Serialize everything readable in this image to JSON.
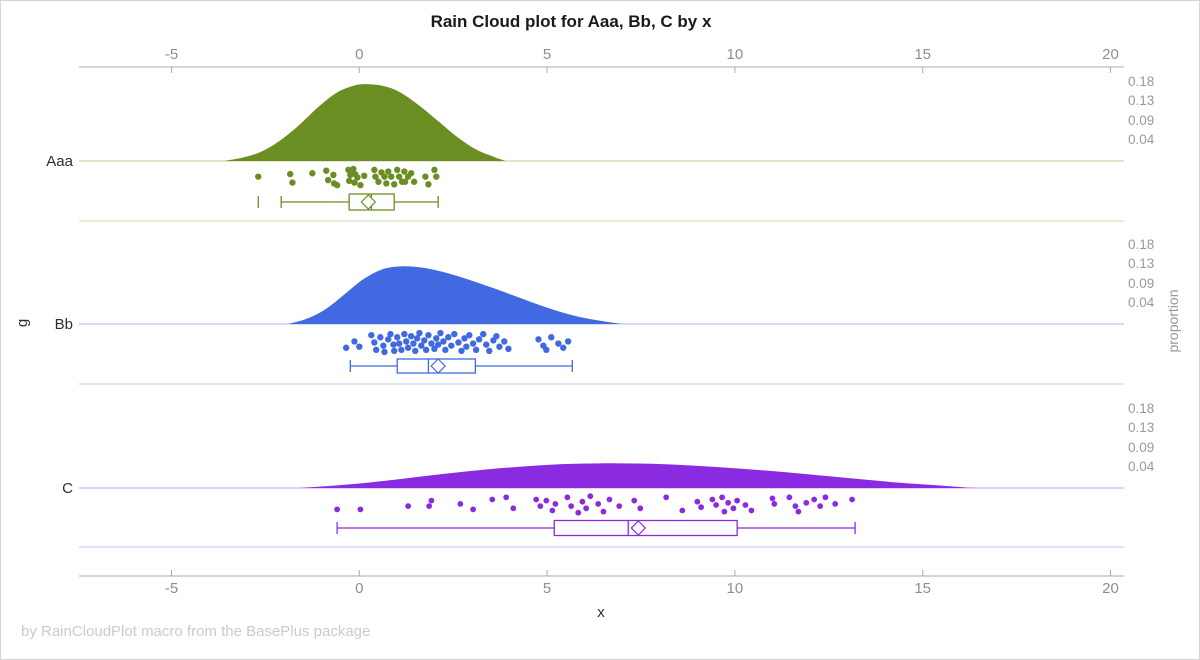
{
  "chart_data": {
    "type": "raincloud",
    "title": "Rain Cloud plot for Aaa, Bb, C by x",
    "footnote": "by RainCloudPlot macro from the BasePlus package",
    "xlabel": "x",
    "ylabel_left": "g",
    "ylabel_right": "proportion",
    "xlim": [
      -7.5,
      20.4
    ],
    "x_ticks": [
      -5,
      0,
      5,
      10,
      15,
      20
    ],
    "proportion_ticks": [
      "0.18",
      "0.13",
      "0.09",
      "0.04"
    ],
    "axis_color": "#ababab",
    "tick_label_color": "#8e8e8e",
    "groups": [
      {
        "label": "Aaa",
        "color": "#6B8E23",
        "density": {
          "x": [
            -3.6,
            -3.1,
            -2.6,
            -2.1,
            -1.6,
            -1.1,
            -0.6,
            -0.1,
            0.3,
            0.7,
            1.1,
            1.6,
            2.1,
            2.6,
            3.1,
            3.6,
            3.9
          ],
          "proportion": [
            0,
            0.008,
            0.022,
            0.048,
            0.083,
            0.124,
            0.158,
            0.175,
            0.177,
            0.172,
            0.158,
            0.128,
            0.092,
            0.056,
            0.027,
            0.009,
            0
          ]
        },
        "box": {
          "outlier_tick": -2.69,
          "whisker_low": -2.08,
          "q1": -0.27,
          "median": 0.32,
          "mean": 0.24,
          "q3": 0.93,
          "whisker_high": 2.1
        },
        "points": [
          [
            -2.69,
            0.45
          ],
          [
            -1.84,
            0.3
          ],
          [
            -1.78,
            0.8
          ],
          [
            -1.25,
            0.25
          ],
          [
            -0.88,
            0.1
          ],
          [
            -0.83,
            0.65
          ],
          [
            -0.69,
            0.35
          ],
          [
            -0.67,
            0.85
          ],
          [
            -0.59,
            0.95
          ],
          [
            -0.29,
            0.05
          ],
          [
            -0.27,
            0.7
          ],
          [
            -0.24,
            0.35
          ],
          [
            -0.19,
            0.2
          ],
          [
            -0.16,
            0.0
          ],
          [
            -0.13,
            0.8
          ],
          [
            -0.11,
            0.3
          ],
          [
            -0.05,
            0.5
          ],
          [
            0.03,
            0.95
          ],
          [
            0.13,
            0.4
          ],
          [
            0.4,
            0.05
          ],
          [
            0.43,
            0.45
          ],
          [
            0.51,
            0.75
          ],
          [
            0.59,
            0.2
          ],
          [
            0.67,
            0.45
          ],
          [
            0.72,
            0.85
          ],
          [
            0.77,
            0.15
          ],
          [
            0.85,
            0.45
          ],
          [
            0.93,
            0.9
          ],
          [
            1.01,
            0.05
          ],
          [
            1.06,
            0.45
          ],
          [
            1.14,
            0.75
          ],
          [
            1.2,
            0.15
          ],
          [
            1.22,
            0.75
          ],
          [
            1.3,
            0.45
          ],
          [
            1.38,
            0.25
          ],
          [
            1.46,
            0.75
          ],
          [
            1.76,
            0.45
          ],
          [
            1.84,
            0.9
          ],
          [
            2.0,
            0.05
          ],
          [
            2.05,
            0.45
          ]
        ]
      },
      {
        "label": "Bb",
        "color": "#4169E1",
        "density": {
          "x": [
            -1.9,
            -1.4,
            -0.9,
            -0.4,
            0.1,
            0.6,
            1.1,
            1.6,
            2.1,
            2.6,
            3.1,
            3.6,
            4.1,
            4.6,
            5.1,
            5.6,
            6.1,
            6.6,
            7.0
          ],
          "proportion": [
            0,
            0.012,
            0.034,
            0.068,
            0.103,
            0.126,
            0.133,
            0.131,
            0.123,
            0.111,
            0.097,
            0.082,
            0.066,
            0.05,
            0.035,
            0.022,
            0.012,
            0.005,
            0
          ]
        },
        "box": {
          "whisker_low": -0.24,
          "q1": 1.01,
          "median": 1.84,
          "mean": 2.1,
          "q3": 3.09,
          "whisker_high": 5.67
        },
        "points": [
          [
            -0.35,
            0.75
          ],
          [
            -0.13,
            0.45
          ],
          [
            0.0,
            0.7
          ],
          [
            0.32,
            0.15
          ],
          [
            0.4,
            0.5
          ],
          [
            0.45,
            0.85
          ],
          [
            0.56,
            0.25
          ],
          [
            0.64,
            0.65
          ],
          [
            0.67,
            0.95
          ],
          [
            0.77,
            0.35
          ],
          [
            0.83,
            0.1
          ],
          [
            0.91,
            0.6
          ],
          [
            0.93,
            0.9
          ],
          [
            1.01,
            0.25
          ],
          [
            1.06,
            0.55
          ],
          [
            1.12,
            0.85
          ],
          [
            1.2,
            0.1
          ],
          [
            1.25,
            0.45
          ],
          [
            1.3,
            0.75
          ],
          [
            1.38,
            0.2
          ],
          [
            1.44,
            0.55
          ],
          [
            1.49,
            0.9
          ],
          [
            1.54,
            0.3
          ],
          [
            1.6,
            0.05
          ],
          [
            1.65,
            0.65
          ],
          [
            1.73,
            0.4
          ],
          [
            1.78,
            0.85
          ],
          [
            1.84,
            0.15
          ],
          [
            1.92,
            0.55
          ],
          [
            2.0,
            0.8
          ],
          [
            2.05,
            0.3
          ],
          [
            2.1,
            0.6
          ],
          [
            2.16,
            0.05
          ],
          [
            2.24,
            0.45
          ],
          [
            2.29,
            0.85
          ],
          [
            2.37,
            0.25
          ],
          [
            2.45,
            0.65
          ],
          [
            2.53,
            0.1
          ],
          [
            2.64,
            0.5
          ],
          [
            2.72,
            0.9
          ],
          [
            2.8,
            0.3
          ],
          [
            2.85,
            0.7
          ],
          [
            2.93,
            0.15
          ],
          [
            3.03,
            0.55
          ],
          [
            3.11,
            0.85
          ],
          [
            3.19,
            0.35
          ],
          [
            3.3,
            0.1
          ],
          [
            3.38,
            0.6
          ],
          [
            3.46,
            0.9
          ],
          [
            3.57,
            0.4
          ],
          [
            3.65,
            0.2
          ],
          [
            3.73,
            0.7
          ],
          [
            3.86,
            0.45
          ],
          [
            3.97,
            0.8
          ],
          [
            4.77,
            0.35
          ],
          [
            4.9,
            0.65
          ],
          [
            4.98,
            0.85
          ],
          [
            5.11,
            0.25
          ],
          [
            5.3,
            0.55
          ],
          [
            5.43,
            0.75
          ],
          [
            5.56,
            0.45
          ]
        ]
      },
      {
        "label": "C",
        "color": "#8A2BE2",
        "density": {
          "x": [
            -1.6,
            -0.6,
            0.4,
            1.4,
            2.4,
            3.4,
            4.4,
            5.4,
            6.4,
            7.4,
            8.4,
            9.4,
            10.4,
            11.4,
            12.4,
            13.4,
            14.4,
            15.4,
            16.2,
            16.6
          ],
          "proportion": [
            0,
            0.006,
            0.014,
            0.024,
            0.034,
            0.043,
            0.05,
            0.055,
            0.057,
            0.0565,
            0.054,
            0.049,
            0.043,
            0.036,
            0.028,
            0.02,
            0.012,
            0.006,
            0.001,
            0
          ]
        },
        "box": {
          "whisker_low": -0.59,
          "q1": 5.19,
          "median": 7.16,
          "mean": 7.43,
          "q3": 10.06,
          "whisker_high": 13.2
        },
        "points": [
          [
            -0.59,
            0.7
          ],
          [
            0.03,
            0.7
          ],
          [
            1.3,
            0.55
          ],
          [
            1.86,
            0.55
          ],
          [
            1.92,
            0.3
          ],
          [
            2.69,
            0.45
          ],
          [
            3.03,
            0.7
          ],
          [
            3.54,
            0.25
          ],
          [
            3.91,
            0.15
          ],
          [
            4.1,
            0.65
          ],
          [
            4.71,
            0.25
          ],
          [
            4.82,
            0.55
          ],
          [
            4.98,
            0.3
          ],
          [
            5.14,
            0.75
          ],
          [
            5.22,
            0.45
          ],
          [
            5.54,
            0.15
          ],
          [
            5.64,
            0.55
          ],
          [
            5.83,
            0.85
          ],
          [
            5.94,
            0.35
          ],
          [
            6.04,
            0.65
          ],
          [
            6.15,
            0.1
          ],
          [
            6.36,
            0.45
          ],
          [
            6.5,
            0.8
          ],
          [
            6.66,
            0.25
          ],
          [
            6.92,
            0.55
          ],
          [
            7.32,
            0.3
          ],
          [
            7.48,
            0.65
          ],
          [
            8.17,
            0.15
          ],
          [
            8.6,
            0.75
          ],
          [
            9.0,
            0.35
          ],
          [
            9.1,
            0.6
          ],
          [
            9.4,
            0.25
          ],
          [
            9.5,
            0.5
          ],
          [
            9.66,
            0.15
          ],
          [
            9.72,
            0.8
          ],
          [
            9.82,
            0.4
          ],
          [
            9.96,
            0.65
          ],
          [
            10.06,
            0.3
          ],
          [
            10.28,
            0.5
          ],
          [
            10.44,
            0.75
          ],
          [
            11.0,
            0.2
          ],
          [
            11.05,
            0.45
          ],
          [
            11.45,
            0.15
          ],
          [
            11.61,
            0.55
          ],
          [
            11.69,
            0.8
          ],
          [
            11.9,
            0.4
          ],
          [
            12.11,
            0.25
          ],
          [
            12.27,
            0.55
          ],
          [
            12.41,
            0.15
          ],
          [
            12.67,
            0.45
          ],
          [
            13.12,
            0.25
          ]
        ]
      }
    ]
  }
}
